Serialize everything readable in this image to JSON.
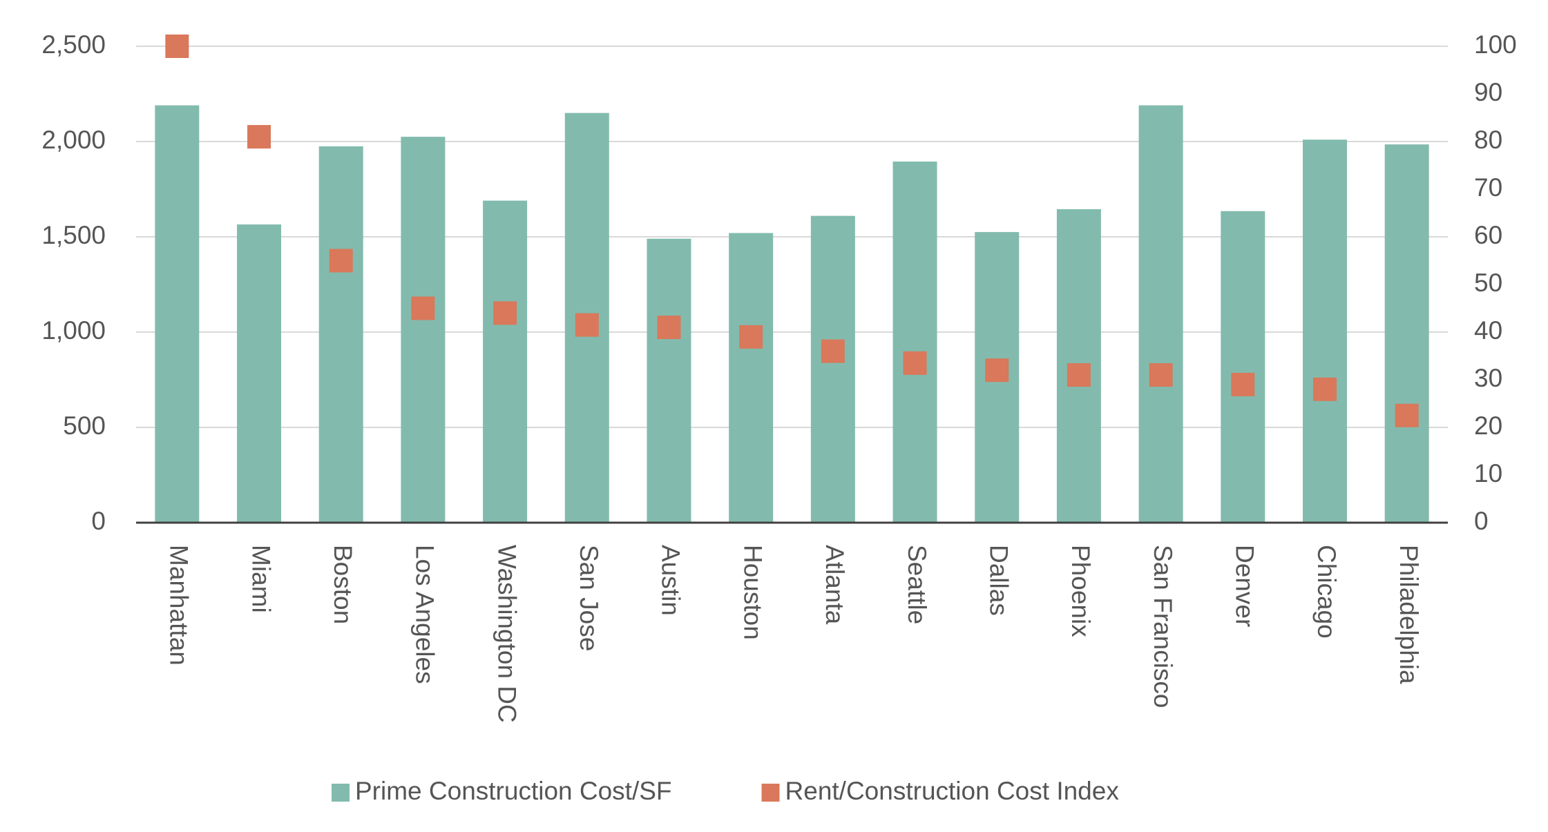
{
  "chart_data": {
    "type": "bar",
    "categories": [
      "Manhattan",
      "Miami",
      "Boston",
      "Los Angeles",
      "Washington DC",
      "San Jose",
      "Austin",
      "Houston",
      "Atlanta",
      "Seattle",
      "Dallas",
      "Phoenix",
      "San Francisco",
      "Denver",
      "Chicago",
      "Philadelphia"
    ],
    "series": [
      {
        "name": "Prime Construction Cost/SF",
        "color": "#82bbad",
        "type": "bar",
        "values": [
          2190,
          1565,
          1975,
          2025,
          1690,
          2150,
          1490,
          1520,
          1610,
          1895,
          1525,
          1645,
          2190,
          1635,
          2010,
          1985
        ]
      },
      {
        "name": "Rent/Construction Cost Index",
        "color": "#d9785a",
        "type": "square-marker",
        "axis": "y2",
        "values": [
          100,
          81,
          55,
          45,
          44,
          41.5,
          41,
          39,
          36,
          33.5,
          32,
          31,
          31,
          29,
          28,
          22.5
        ]
      }
    ],
    "ylim": [
      0,
      2500
    ],
    "yticks": [
      0,
      500,
      {
        "value": 1000,
        "label": "1,000"
      },
      {
        "value": 1500,
        "label": "1,500"
      },
      {
        "value": 2000,
        "label": "2,000"
      },
      {
        "value": 2500,
        "label": "2,500"
      }
    ],
    "y2lim": [
      0,
      100
    ],
    "y2ticks": [
      0,
      10,
      20,
      30,
      40,
      50,
      60,
      70,
      80,
      90,
      100
    ],
    "grid": true,
    "legend": "bottom"
  }
}
